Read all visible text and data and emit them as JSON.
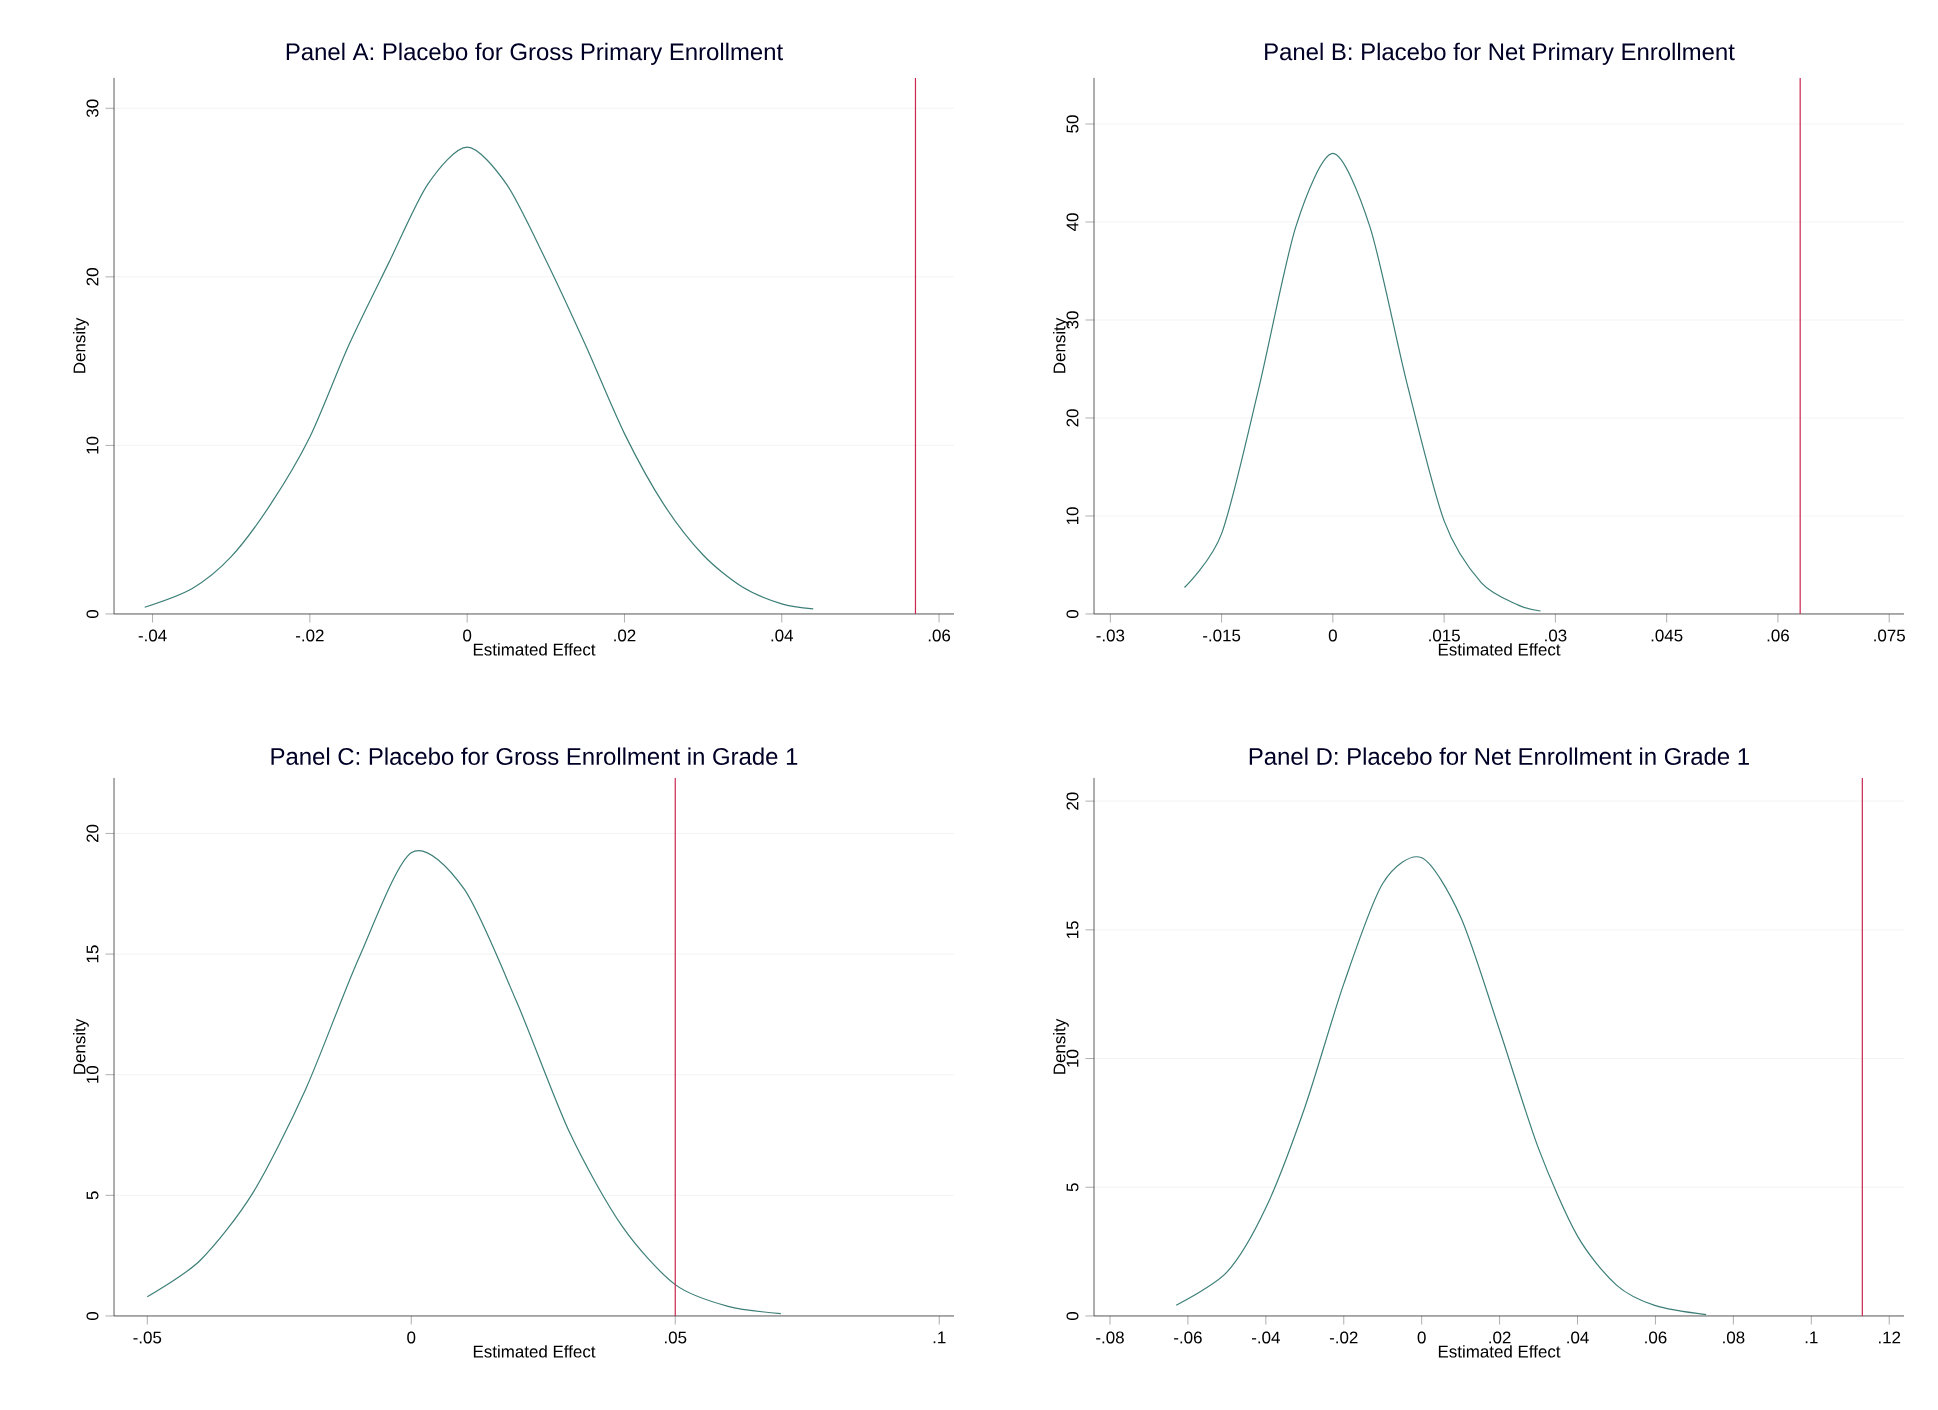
{
  "chart_data": [
    {
      "type": "line",
      "title": "Panel A: Placebo for Gross Primary Enrollment",
      "xlabel": "Estimated Effect",
      "ylabel": "Density",
      "color": "#3d7f78",
      "grid": "y",
      "marker": "none",
      "x": [
        -0.041,
        -0.035,
        -0.03,
        -0.025,
        -0.02,
        -0.015,
        -0.01,
        -0.005,
        0,
        0.005,
        0.01,
        0.015,
        0.02,
        0.025,
        0.03,
        0.035,
        0.04,
        0.044
      ],
      "values": [
        0.4,
        1.5,
        3.4,
        6.5,
        10.5,
        16,
        20.8,
        25.5,
        27.7,
        25.5,
        21,
        16,
        10.7,
        6.5,
        3.5,
        1.6,
        0.6,
        0.3
      ],
      "xlim": [
        -0.0449,
        0.0619
      ],
      "ylim": [
        0,
        31.8
      ],
      "xticks": [
        {
          "value": -0.04,
          "label": "-.04"
        },
        {
          "value": -0.02,
          "label": "-.02"
        },
        0,
        {
          "value": 0.02,
          "label": ".02"
        },
        {
          "value": 0.04,
          "label": ".04"
        },
        {
          "value": 0.06,
          "label": ".06"
        }
      ],
      "yticks": [
        0,
        10,
        20,
        30
      ],
      "ref_lines": [
        {
          "axis": "x",
          "value": 0.057,
          "color": "#c8254f"
        }
      ]
    },
    {
      "type": "line",
      "title": "Panel B: Placebo for Net Primary Enrollment",
      "xlabel": "Estimated Effect",
      "ylabel": "Density",
      "color": "#3d7f78",
      "grid": "y",
      "marker": "none",
      "x": [
        -0.02,
        -0.015,
        -0.01,
        -0.005,
        0,
        0.005,
        0.01,
        0.015,
        0.02,
        0.025,
        0.028
      ],
      "values": [
        2.7,
        8.2,
        23,
        39.5,
        47,
        39.5,
        23.5,
        9.5,
        3.2,
        0.9,
        0.3
      ],
      "xlim": [
        -0.0322,
        0.077
      ],
      "ylim": [
        0,
        54.7
      ],
      "xticks": [
        {
          "value": -0.03,
          "label": "-.03"
        },
        {
          "value": -0.015,
          "label": "-.015"
        },
        0,
        {
          "value": 0.015,
          "label": ".015"
        },
        {
          "value": 0.03,
          "label": ".03"
        },
        {
          "value": 0.045,
          "label": ".045"
        },
        {
          "value": 0.06,
          "label": ".06"
        },
        {
          "value": 0.075,
          "label": ".075"
        }
      ],
      "yticks": [
        0,
        10,
        20,
        30,
        40,
        50
      ],
      "ref_lines": [
        {
          "axis": "x",
          "value": 0.063,
          "color": "#c8254f"
        }
      ]
    },
    {
      "type": "line",
      "title": "Panel C: Placebo for Gross Enrollment in Grade 1",
      "xlabel": "Estimated Effect",
      "ylabel": "Density",
      "color": "#3d7f78",
      "grid": "y",
      "marker": "none",
      "x": [
        -0.05,
        -0.04,
        -0.03,
        -0.02,
        -0.01,
        0,
        0.01,
        0.02,
        0.03,
        0.04,
        0.05,
        0.06,
        0.07
      ],
      "values": [
        0.8,
        2.3,
        5.1,
        9.4,
        14.8,
        19.2,
        17.7,
        13,
        7.6,
        3.7,
        1.3,
        0.4,
        0.1
      ],
      "xlim": [
        -0.0563,
        0.1028
      ],
      "ylim": [
        0,
        22.3
      ],
      "xticks": [
        {
          "value": -0.05,
          "label": "-.05"
        },
        0,
        {
          "value": 0.05,
          "label": ".05"
        },
        {
          "value": 0.1,
          "label": ".1"
        }
      ],
      "yticks": [
        0,
        5,
        10,
        15,
        20
      ],
      "ref_lines": [
        {
          "axis": "x",
          "value": 0.05,
          "color": "#c8254f"
        }
      ]
    },
    {
      "type": "line",
      "title": "Panel D: Placebo for Net Enrollment in Grade 1",
      "xlabel": "Estimated Effect",
      "ylabel": "Density",
      "color": "#3d7f78",
      "grid": "y",
      "marker": "none",
      "x": [
        -0.063,
        -0.05,
        -0.04,
        -0.03,
        -0.02,
        -0.01,
        0,
        0.01,
        0.02,
        0.03,
        0.04,
        0.05,
        0.06,
        0.073
      ],
      "values": [
        0.42,
        1.7,
        4.2,
        8.1,
        12.9,
        16.8,
        17.8,
        15.5,
        11.1,
        6.5,
        3.1,
        1.2,
        0.4,
        0.05
      ],
      "xlim": [
        -0.0841,
        0.1238
      ],
      "ylim": [
        0,
        20.9
      ],
      "xticks": [
        {
          "value": -0.08,
          "label": "-.08"
        },
        {
          "value": -0.06,
          "label": "-.06"
        },
        {
          "value": -0.04,
          "label": "-.04"
        },
        {
          "value": -0.02,
          "label": "-.02"
        },
        0,
        {
          "value": 0.02,
          "label": ".02"
        },
        {
          "value": 0.04,
          "label": ".04"
        },
        {
          "value": 0.06,
          "label": ".06"
        },
        {
          "value": 0.08,
          "label": ".08"
        },
        {
          "value": 0.1,
          "label": ".1"
        },
        {
          "value": 0.12,
          "label": ".12"
        }
      ],
      "yticks": [
        0,
        5,
        10,
        15,
        20
      ],
      "ref_lines": [
        {
          "axis": "x",
          "value": 0.1131,
          "color": "#c8254f"
        }
      ]
    }
  ]
}
